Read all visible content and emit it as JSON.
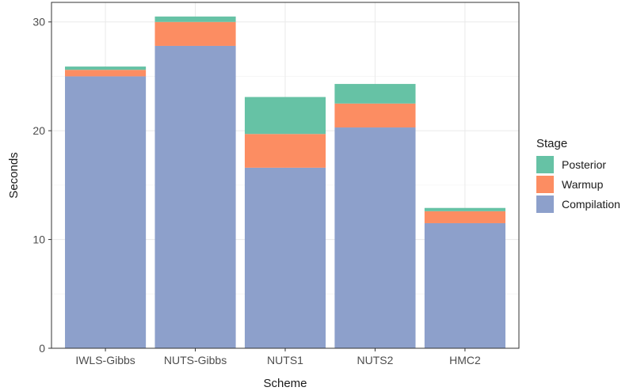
{
  "chart_data": {
    "type": "bar",
    "stacked": true,
    "categories": [
      "IWLS-Gibbs",
      "NUTS-Gibbs",
      "NUTS1",
      "NUTS2",
      "HMC2"
    ],
    "series": [
      {
        "name": "Compilation",
        "color": "#8da0cb",
        "values": [
          25.0,
          27.8,
          16.6,
          20.3,
          11.5
        ]
      },
      {
        "name": "Warmup",
        "color": "#fc8d62",
        "values": [
          0.6,
          2.2,
          3.1,
          2.2,
          1.1
        ]
      },
      {
        "name": "Posterior",
        "color": "#66c2a5",
        "values": [
          0.3,
          0.5,
          3.4,
          1.8,
          0.3
        ]
      }
    ],
    "xlabel": "Scheme",
    "ylabel": "Seconds",
    "ylim": [
      0,
      31.8
    ],
    "yticks": [
      0,
      10,
      20,
      30
    ],
    "grid": true,
    "legend": {
      "title": "Stage",
      "placement": "right",
      "order": [
        "Posterior",
        "Warmup",
        "Compilation"
      ]
    }
  }
}
